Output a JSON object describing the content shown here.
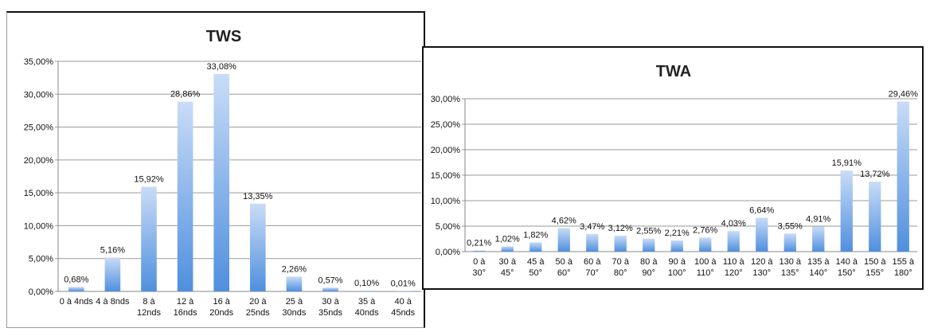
{
  "chart_data": [
    {
      "id": "tws",
      "type": "bar",
      "title": "TWS",
      "categories": [
        "0 à 4nds",
        "4 à 8nds",
        "8 à 12nds",
        "12 à 16nds",
        "16 à 20nds",
        "20 à 25nds",
        "25 à 30nds",
        "30 à 35nds",
        "35 à 40nds",
        "40 à 45nds"
      ],
      "category_lines": [
        [
          "0 à 4nds"
        ],
        [
          "4 à 8nds"
        ],
        [
          "8 à",
          "12nds"
        ],
        [
          "12 à",
          "16nds"
        ],
        [
          "16 à",
          "20nds"
        ],
        [
          "20 à",
          "25nds"
        ],
        [
          "25 à",
          "30nds"
        ],
        [
          "30 à",
          "35nds"
        ],
        [
          "35 à",
          "40nds"
        ],
        [
          "40 à",
          "45nds"
        ]
      ],
      "values": [
        0.68,
        5.16,
        15.92,
        28.86,
        33.08,
        13.35,
        2.26,
        0.57,
        0.1,
        0.01
      ],
      "value_labels": [
        "0,68%",
        "5,16%",
        "15,92%",
        "28,86%",
        "33,08%",
        "13,35%",
        "2,26%",
        "0,57%",
        "0,10%",
        "0,01%"
      ],
      "ylim": [
        0,
        35
      ],
      "yticks": [
        0,
        5,
        10,
        15,
        20,
        25,
        30,
        35
      ],
      "ytick_labels": [
        "0,00%",
        "5,00%",
        "10,00%",
        "15,00%",
        "20,00%",
        "25,00%",
        "30,00%",
        "35,00%"
      ],
      "xlabel": "",
      "ylabel": "",
      "grid": true,
      "legend": "none",
      "bar_color_top": "#c9dcf7",
      "bar_color_bottom": "#4f8fde"
    },
    {
      "id": "twa",
      "type": "bar",
      "title": "TWA",
      "categories": [
        "0 à 30°",
        "30 à 45°",
        "45 à 50°",
        "50 à 60°",
        "60 à 70°",
        "70 à 80°",
        "80 à 90°",
        "90 à 100°",
        "100 à 110°",
        "110 à 120°",
        "120 à 130°",
        "130 à 135°",
        "135 à 140°",
        "140 à 150°",
        "150 à 155°",
        "155 à 180°"
      ],
      "category_lines": [
        [
          "0 à",
          "30°"
        ],
        [
          "30 à",
          "45°"
        ],
        [
          "45 à",
          "50°"
        ],
        [
          "50 à",
          "60°"
        ],
        [
          "60 à",
          "70°"
        ],
        [
          "70 à",
          "80°"
        ],
        [
          "80 à",
          "90°"
        ],
        [
          "90 à",
          "100°"
        ],
        [
          "100 à",
          "110°"
        ],
        [
          "110 à",
          "120°"
        ],
        [
          "120 à",
          "130°"
        ],
        [
          "130 à",
          "135°"
        ],
        [
          "135 à",
          "140°"
        ],
        [
          "140 à",
          "150°"
        ],
        [
          "150 à",
          "155°"
        ],
        [
          "155 à",
          "180°"
        ]
      ],
      "values": [
        0.21,
        1.02,
        1.82,
        4.62,
        3.47,
        3.12,
        2.55,
        2.21,
        2.76,
        4.03,
        6.64,
        3.55,
        4.91,
        15.91,
        13.72,
        29.46
      ],
      "value_labels": [
        "0,21%",
        "1,02%",
        "1,82%",
        "4,62%",
        "3,47%",
        "3,12%",
        "2,55%",
        "2,21%",
        "2,76%",
        "4,03%",
        "6,64%",
        "3,55%",
        "4,91%",
        "15,91%",
        "13,72%",
        "29,46%"
      ],
      "ylim": [
        0,
        30
      ],
      "yticks": [
        0,
        5,
        10,
        15,
        20,
        25,
        30
      ],
      "ytick_labels": [
        "0,00%",
        "5,00%",
        "10,00%",
        "15,00%",
        "20,00%",
        "25,00%",
        "30,00%"
      ],
      "xlabel": "",
      "ylabel": "",
      "grid": true,
      "legend": "none",
      "bar_color_top": "#c9dcf7",
      "bar_color_bottom": "#4f8fde"
    }
  ]
}
